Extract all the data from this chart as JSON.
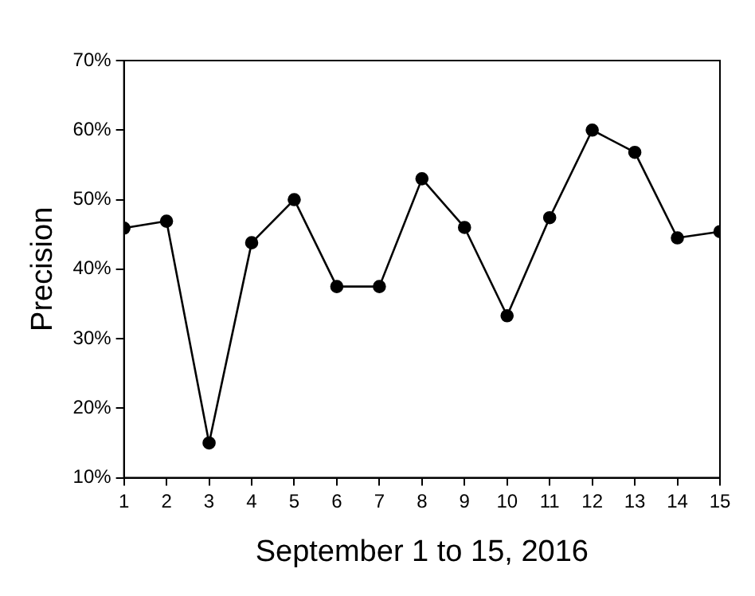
{
  "chart_data": {
    "type": "line",
    "xlabel": "September 1 to 15, 2016",
    "ylabel": "Precision",
    "x": [
      1,
      2,
      3,
      4,
      5,
      6,
      7,
      8,
      9,
      10,
      11,
      12,
      13,
      14,
      15
    ],
    "series": [
      {
        "color": "#000000",
        "values": [
          45.9,
          46.9,
          15,
          43.8,
          50,
          37.5,
          37.5,
          53,
          46,
          33.3,
          47.4,
          60,
          56.8,
          44.5,
          45.4
        ]
      }
    ],
    "xlim": [
      1,
      15
    ],
    "xticks": [
      1,
      2,
      3,
      4,
      5,
      6,
      7,
      8,
      9,
      10,
      11,
      12,
      13,
      14,
      15
    ],
    "ylim": [
      10,
      70
    ],
    "yticks": [
      {
        "value": 10,
        "label": "10%"
      },
      {
        "value": 20,
        "label": "20%"
      },
      {
        "value": 30,
        "label": "30%"
      },
      {
        "value": 40,
        "label": "40%"
      },
      {
        "value": 50,
        "label": "50%"
      },
      {
        "value": 60,
        "label": "60%"
      },
      {
        "value": 70,
        "label": "70%"
      }
    ],
    "grid": false,
    "legend": false,
    "marker": "circle",
    "line_style": "solid"
  }
}
